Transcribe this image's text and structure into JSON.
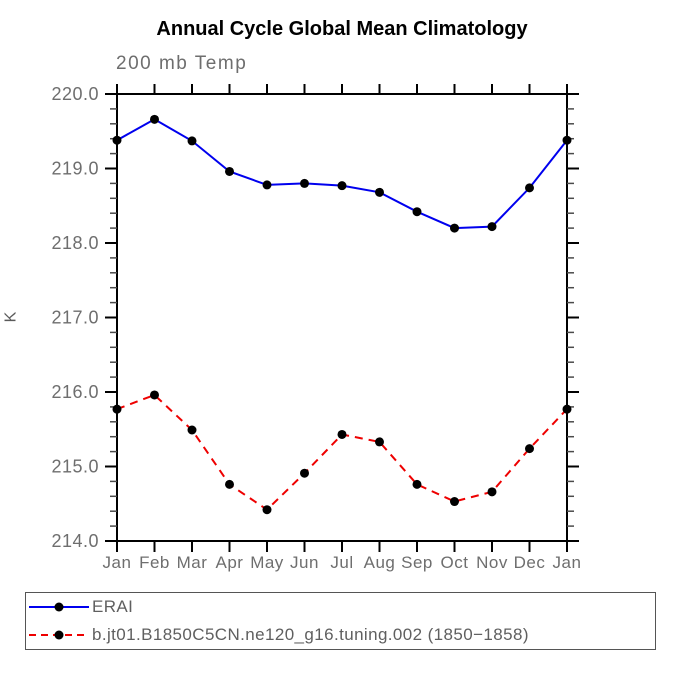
{
  "colors": {
    "erai_line": "#0000ee",
    "model_line": "#ee0000",
    "marker": "#000000",
    "axis": "#000000",
    "tick_minor": "#4a4a4a",
    "tick_label": "#6e6e6e",
    "title": "#000000",
    "legend_border": "#555555"
  },
  "chart_data": {
    "type": "line",
    "title": "Annual Cycle Global Mean Climatology",
    "subtitle": "200 mb Temp",
    "xlabel": "",
    "ylabel": "K",
    "categories": [
      "Jan",
      "Feb",
      "Mar",
      "Apr",
      "May",
      "Jun",
      "Jul",
      "Aug",
      "Sep",
      "Oct",
      "Nov",
      "Dec",
      "Jan"
    ],
    "ylim": [
      214.0,
      220.0
    ],
    "ytick_interval": 1.0,
    "yminor_interval": 0.2,
    "ytick_labels": [
      "220.0",
      "219.0",
      "218.0",
      "217.0",
      "216.0",
      "215.0",
      "214.0"
    ],
    "grid": false,
    "legend_position": "bottom-left",
    "marker": {
      "shape": "circle",
      "color": "#000000",
      "radius": 4.5
    },
    "series": [
      {
        "name": "ERAI",
        "color": "#0000ee",
        "line_style": "solid",
        "values": [
          219.38,
          219.66,
          219.37,
          218.96,
          218.78,
          218.8,
          218.77,
          218.68,
          218.42,
          218.2,
          218.22,
          218.74,
          219.38
        ]
      },
      {
        "name": "b.jt01.B1850C5CN.ne120_g16.tuning.002 (1850−1858)",
        "color": "#ee0000",
        "line_style": "dashed",
        "values": [
          215.77,
          215.96,
          215.49,
          214.76,
          214.42,
          214.91,
          215.43,
          215.33,
          214.76,
          214.53,
          214.66,
          215.24,
          215.77
        ]
      }
    ]
  }
}
